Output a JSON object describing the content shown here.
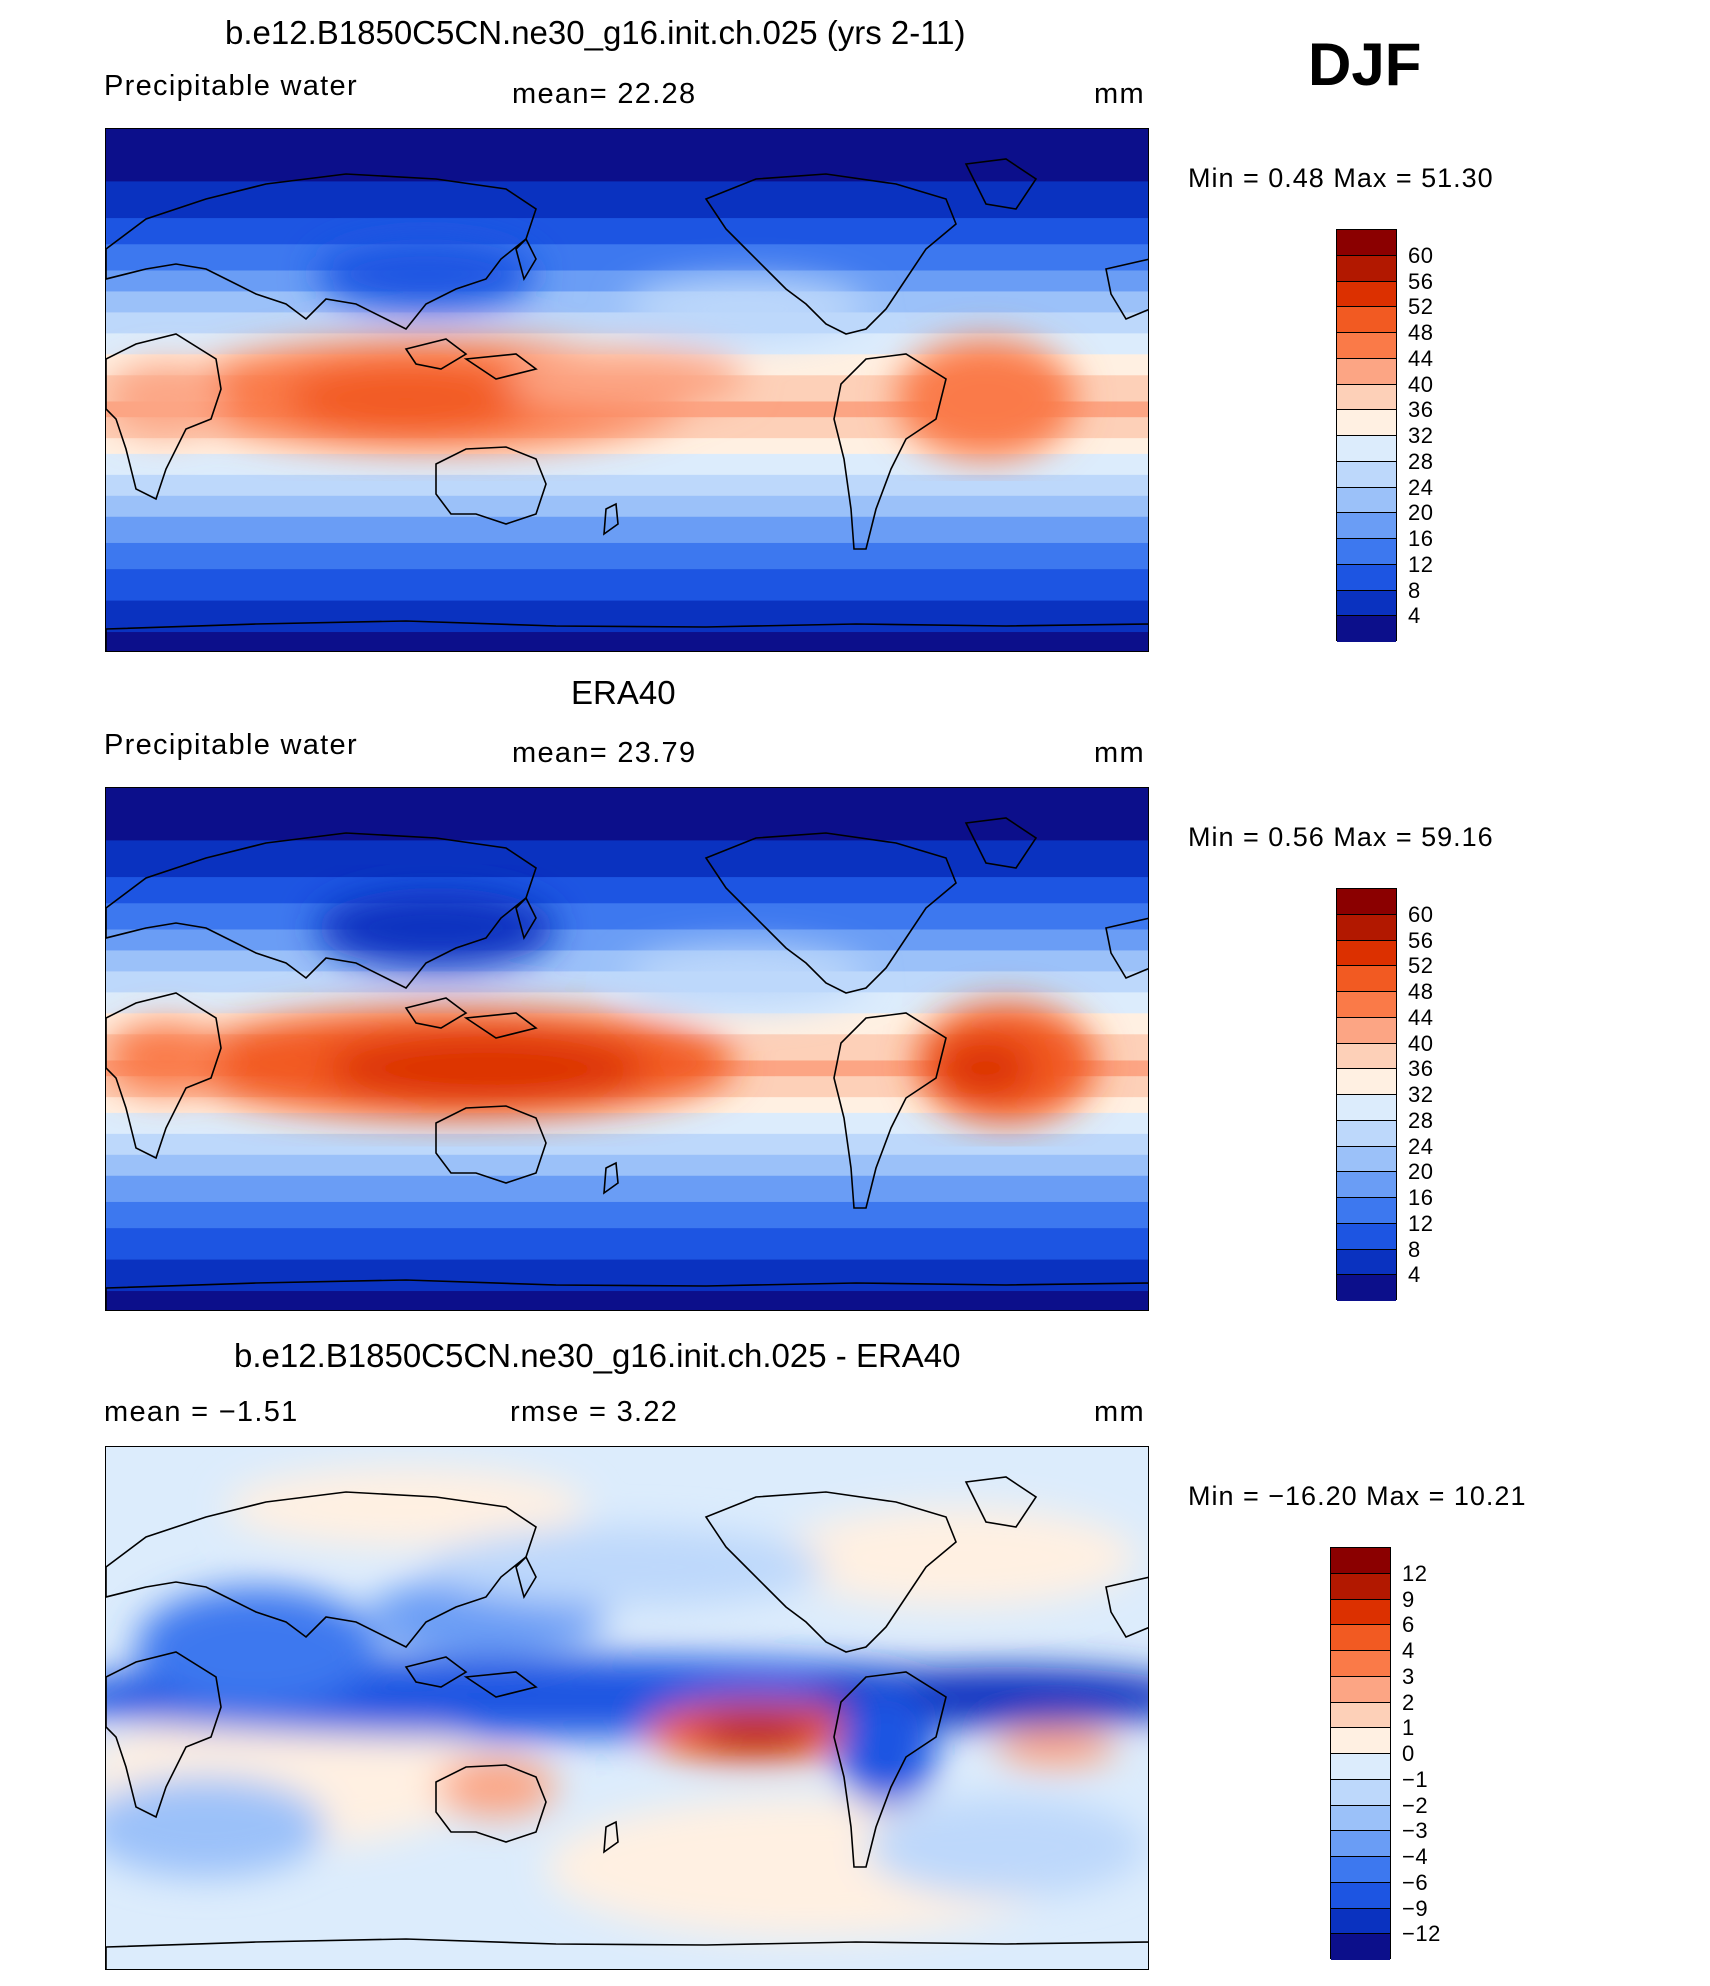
{
  "season": "DJF",
  "panels": [
    {
      "id": "model",
      "title": "b.e12.B1850C5CN.ne30_g16.init.ch.025 (yrs 2-11)",
      "left_label": "Precipitable water",
      "center_label": "mean=   22.28",
      "units": "mm",
      "minmax": "Min  =     0.48  Max  =    51.30",
      "colorbar": {
        "colors": [
          "#8b0000",
          "#b21800",
          "#dc3000",
          "#f25a22",
          "#fa7a48",
          "#fca584",
          "#fdd0b8",
          "#fff0e2",
          "#dcecfc",
          "#bdd8fb",
          "#9bc1f9",
          "#6a9df5",
          "#3d78ef",
          "#1d55e2",
          "#0a32c0",
          "#0c0f8b"
        ],
        "labels": [
          "60",
          "56",
          "52",
          "48",
          "44",
          "40",
          "36",
          "32",
          "28",
          "24",
          "20",
          "16",
          "12",
          "8",
          "4"
        ]
      }
    },
    {
      "id": "obs",
      "title": "ERA40",
      "left_label": "Precipitable water",
      "center_label": "mean=   23.79",
      "units": "mm",
      "minmax": "Min  =     0.56  Max  =    59.16",
      "colorbar": {
        "colors": [
          "#8b0000",
          "#b21800",
          "#dc3000",
          "#f25a22",
          "#fa7a48",
          "#fca584",
          "#fdd0b8",
          "#fff0e2",
          "#dcecfc",
          "#bdd8fb",
          "#9bc1f9",
          "#6a9df5",
          "#3d78ef",
          "#1d55e2",
          "#0a32c0",
          "#0c0f8b"
        ],
        "labels": [
          "60",
          "56",
          "52",
          "48",
          "44",
          "40",
          "36",
          "32",
          "28",
          "24",
          "20",
          "16",
          "12",
          "8",
          "4"
        ]
      }
    },
    {
      "id": "diff",
      "title": "b.e12.B1850C5CN.ne30_g16.init.ch.025 - ERA40",
      "left_label": "mean  =    −1.51",
      "center_label": "rmse  =      3.22",
      "units": "mm",
      "minmax": "Min  =  −16.20  Max  =    10.21",
      "colorbar": {
        "colors": [
          "#8b0000",
          "#b21800",
          "#dc3000",
          "#f25a22",
          "#fa7a48",
          "#fca584",
          "#fdd0b8",
          "#fff0e2",
          "#dcecfc",
          "#bdd8fb",
          "#9bc1f9",
          "#6a9df5",
          "#3d78ef",
          "#1d55e2",
          "#0a32c0",
          "#0c0f8b"
        ],
        "labels": [
          "12",
          "9",
          "6",
          "4",
          "3",
          "2",
          "1",
          "0",
          "−1",
          "−2",
          "−3",
          "−4",
          "−6",
          "−9",
          "−12"
        ]
      }
    }
  ]
}
